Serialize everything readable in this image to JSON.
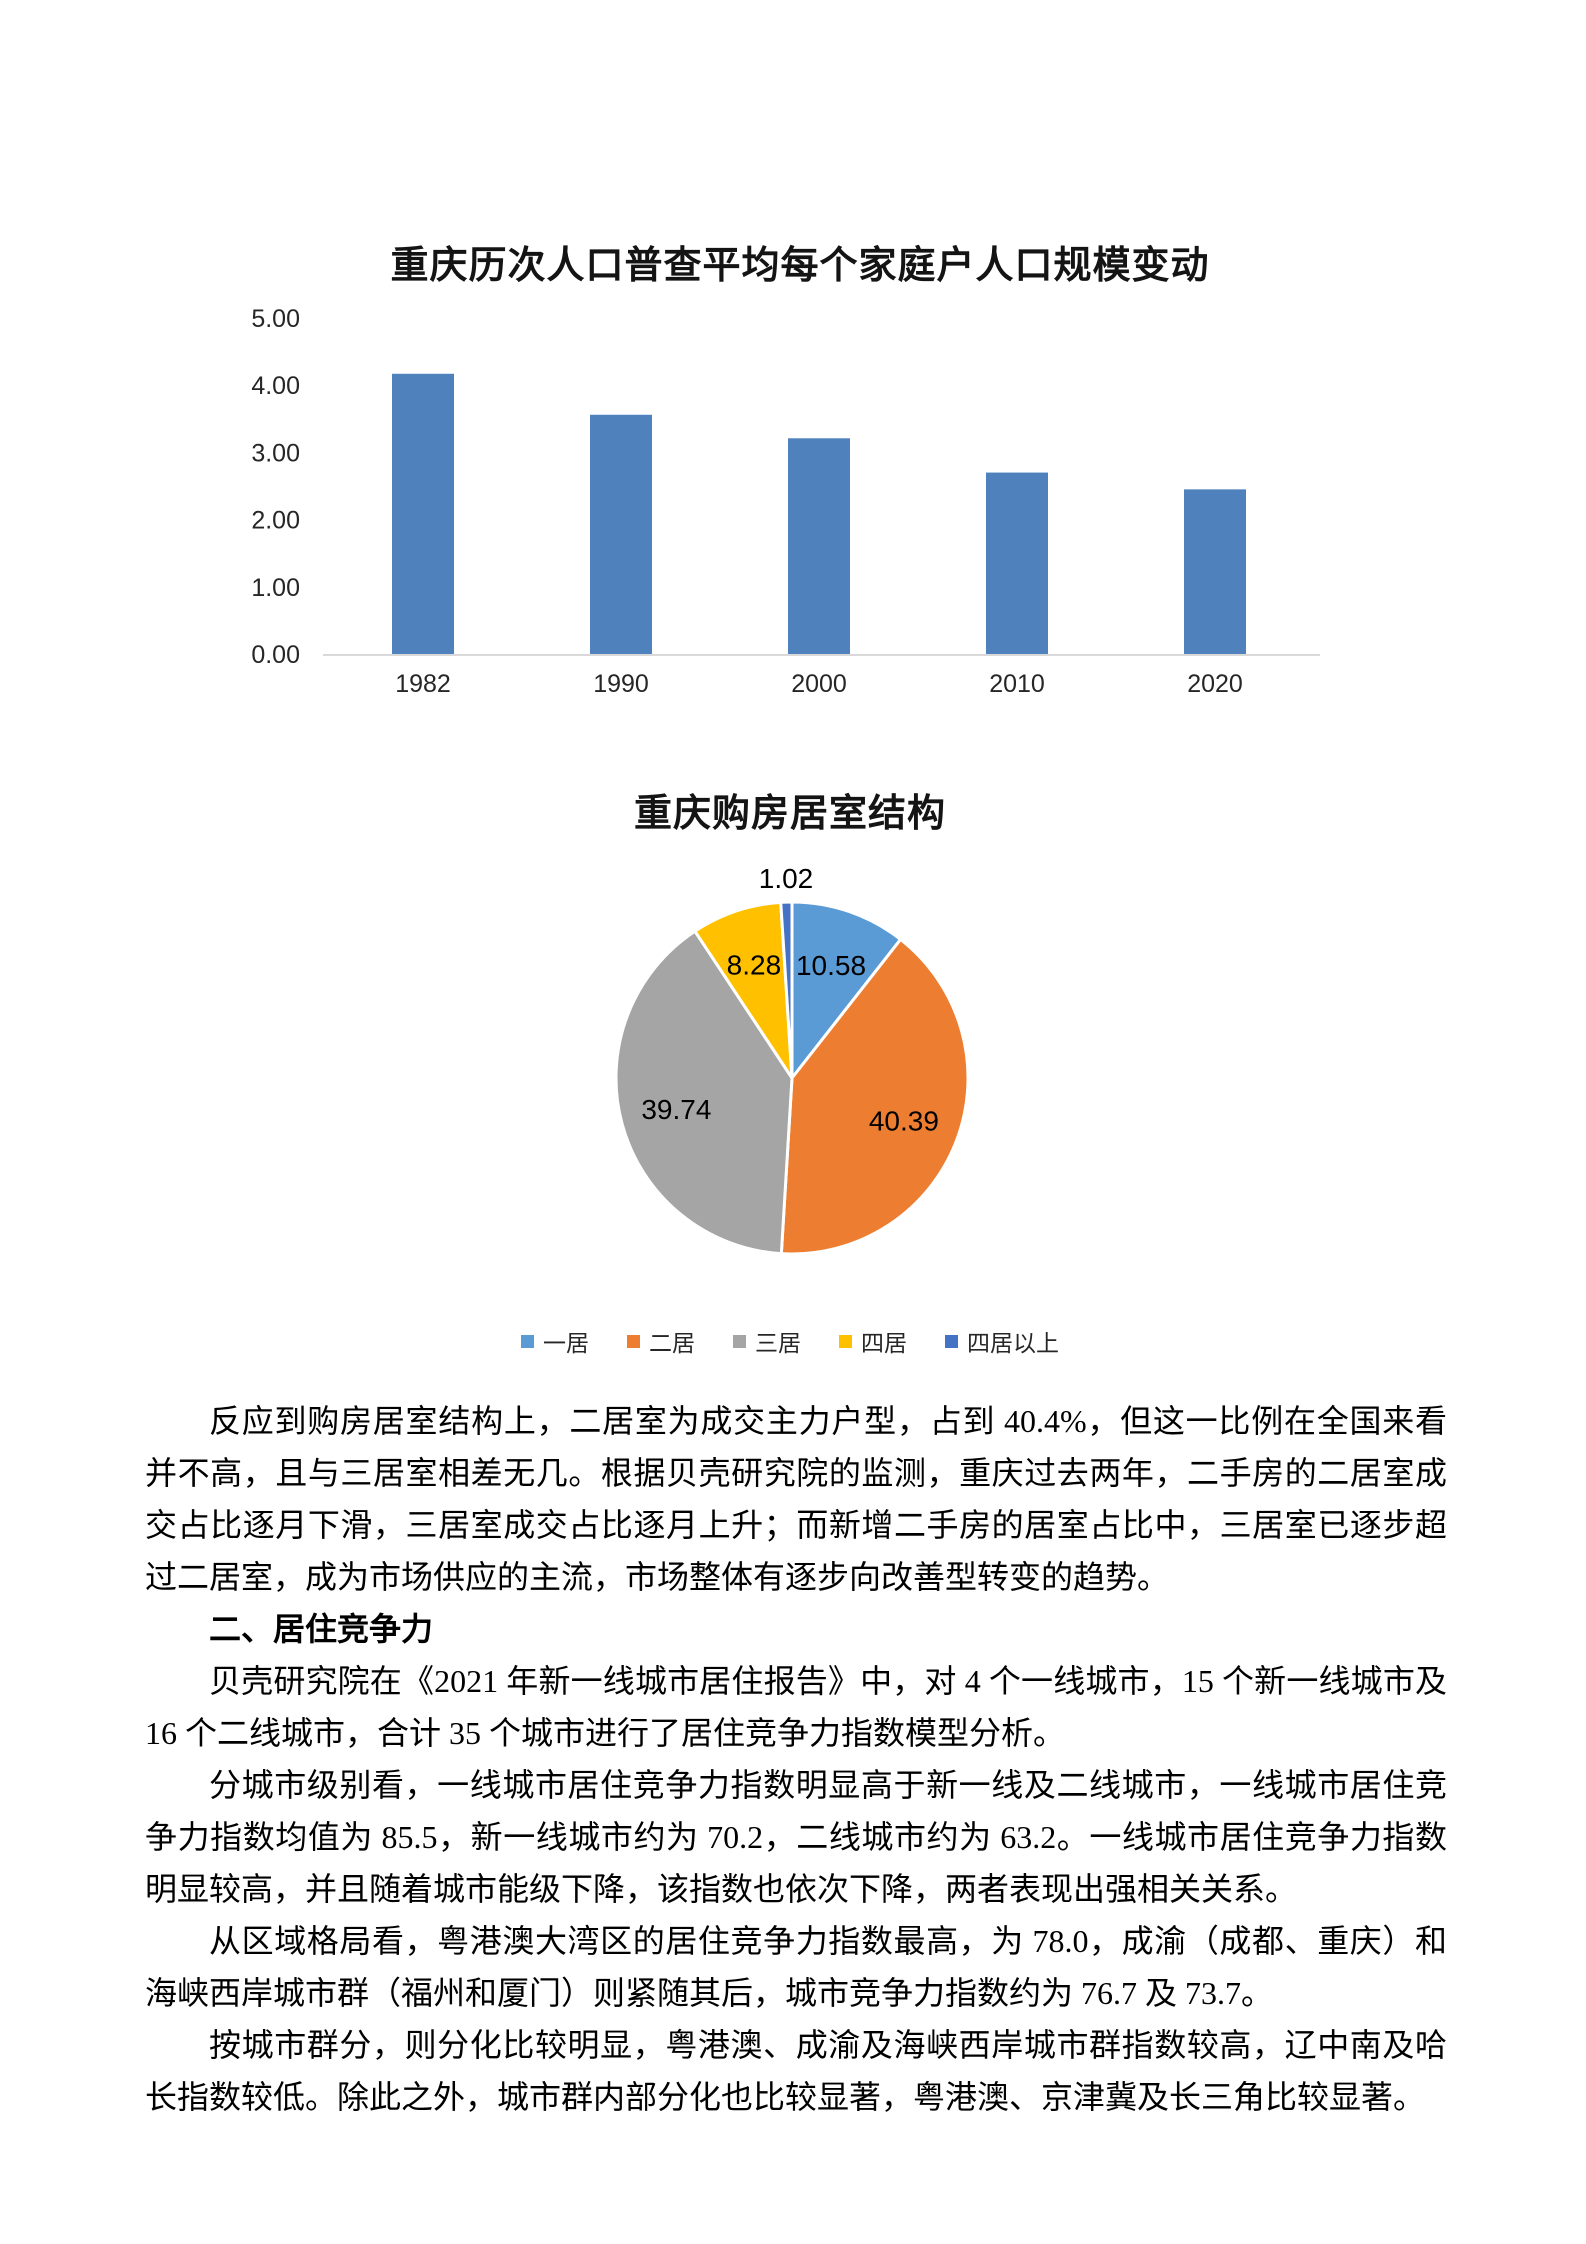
{
  "page": {
    "background_color": "#ffffff"
  },
  "chart_data": [
    {
      "type": "bar",
      "title": "重庆历次人口普查平均每个家庭户人口规模变动",
      "categories": [
        "1982",
        "1990",
        "2000",
        "2010",
        "2020"
      ],
      "values": [
        4.17,
        3.56,
        3.21,
        2.7,
        2.45
      ],
      "xlabel": "",
      "ylabel": "",
      "ylim": [
        0,
        5
      ],
      "y_tick_labels": [
        "0.00",
        "1.00",
        "2.00",
        "3.00",
        "4.00",
        "5.00"
      ],
      "grid": "off",
      "legend_position": "none",
      "bar_color": "#4F81BD",
      "axis_line_color": "#D9D9D9"
    },
    {
      "type": "pie",
      "title": "重庆购房居室结构",
      "labels": [
        "一居",
        "二居",
        "三居",
        "四居",
        "四居以上"
      ],
      "values": [
        10.58,
        40.39,
        39.74,
        8.28,
        1.02
      ],
      "data_labels": [
        "10.58",
        "40.39",
        "39.74",
        "8.28",
        "1.02"
      ],
      "colors": [
        "#5B9BD5",
        "#ED7D31",
        "#A5A5A5",
        "#FFC000",
        "#4472C4"
      ],
      "start_angle_deg": 0,
      "direction": "clockwise",
      "slice_border_color": "#ffffff",
      "legend_position": "bottom"
    }
  ],
  "text": {
    "p1": "反应到购房居室结构上，二居室为成交主力户型，占到 40.4%，但这一比例在全国来看并不高，且与三居室相差无几。根据贝壳研究院的监测，重庆过去两年，二手房的二居室成交占比逐月下滑，三居室成交占比逐月上升；而新增二手房的居室占比中，三居室已逐步超过二居室，成为市场供应的主流，市场整体有逐步向改善型转变的趋势。",
    "heading": "二、居住竞争力",
    "p2": "贝壳研究院在《2021 年新一线城市居住报告》中，对 4 个一线城市，15 个新一线城市及 16 个二线城市，合计 35 个城市进行了居住竞争力指数模型分析。",
    "p3": "分城市级别看，一线城市居住竞争力指数明显高于新一线及二线城市，一线城市居住竞争力指数均值为 85.5，新一线城市约为 70.2，二线城市约为 63.2。一线城市居住竞争力指数明显较高，并且随着城市能级下降，该指数也依次下降，两者表现出强相关关系。",
    "p4": "从区域格局看，粤港澳大湾区的居住竞争力指数最高，为 78.0，成渝（成都、重庆）和海峡西岸城市群（福州和厦门）则紧随其后，城市竞争力指数约为 76.7 及 73.7。",
    "p5": "按城市群分，则分化比较明显，粤港澳、成渝及海峡西岸城市群指数较高，辽中南及哈长指数较低。除此之外，城市群内部分化也比较显著，粤港澳、京津冀及长三角比较显著。"
  }
}
